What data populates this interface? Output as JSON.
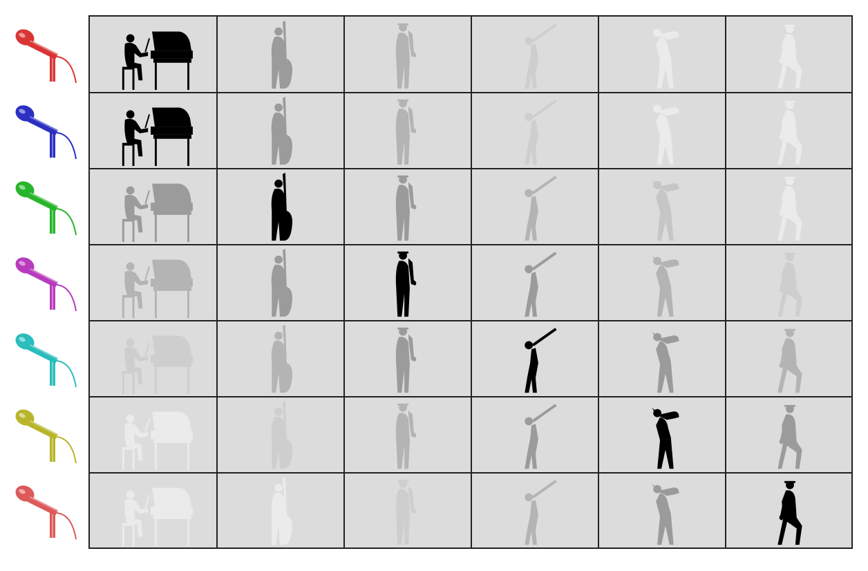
{
  "microphones": [
    {
      "color": "#d93535",
      "icon": "microphone-icon"
    },
    {
      "color": "#2b2fc2",
      "icon": "microphone-icon"
    },
    {
      "color": "#27b52b",
      "icon": "microphone-icon"
    },
    {
      "color": "#b83bbd",
      "icon": "microphone-icon"
    },
    {
      "color": "#2bbcbc",
      "icon": "microphone-icon"
    },
    {
      "color": "#b8b52b",
      "icon": "microphone-icon"
    },
    {
      "color": "#dc5a5a",
      "icon": "microphone-icon"
    }
  ],
  "instruments": [
    "piano",
    "double-bass",
    "saxophone",
    "clarinet",
    "saxophone-bent",
    "saxophone-sitting"
  ],
  "rows": [
    [
      1.0,
      0.55,
      0.45,
      0.35,
      0.22,
      0.12
    ],
    [
      1.0,
      0.55,
      0.45,
      0.35,
      0.22,
      0.12
    ],
    [
      0.55,
      1.0,
      0.55,
      0.45,
      0.38,
      0.22
    ],
    [
      0.45,
      0.55,
      1.0,
      0.55,
      0.45,
      0.35
    ],
    [
      0.35,
      0.45,
      0.55,
      1.0,
      0.55,
      0.45
    ],
    [
      0.22,
      0.35,
      0.45,
      0.55,
      1.0,
      0.55
    ],
    [
      0.12,
      0.22,
      0.35,
      0.45,
      0.55,
      1.0
    ]
  ]
}
